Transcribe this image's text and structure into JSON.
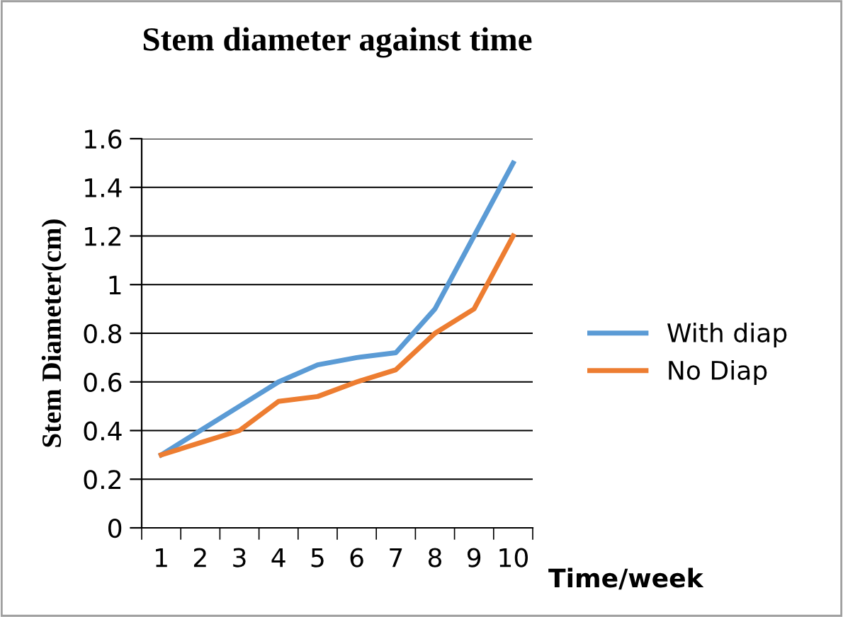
{
  "chart_data": {
    "type": "line",
    "title": "Stem diameter against time",
    "xlabel": "Time/week",
    "ylabel": "Stem Diameter(cm)",
    "categories": [
      "1",
      "2",
      "3",
      "4",
      "5",
      "6",
      "7",
      "8",
      "9",
      "10"
    ],
    "series": [
      {
        "name": "With diap",
        "color": "#5b9bd5",
        "values": [
          0.3,
          0.4,
          0.5,
          0.6,
          0.67,
          0.7,
          0.72,
          0.9,
          1.2,
          1.5
        ]
      },
      {
        "name": "No Diap",
        "color": "#ed7d31",
        "values": [
          0.3,
          0.35,
          0.4,
          0.52,
          0.54,
          0.6,
          0.65,
          0.8,
          0.9,
          1.2
        ]
      }
    ],
    "ylim": [
      0,
      1.6
    ],
    "yticks": [
      0,
      0.2,
      0.4,
      0.6,
      0.8,
      1,
      1.2,
      1.4,
      1.6
    ],
    "grid": "y",
    "legend": "right",
    "marker": "none",
    "line_style": "solid"
  }
}
